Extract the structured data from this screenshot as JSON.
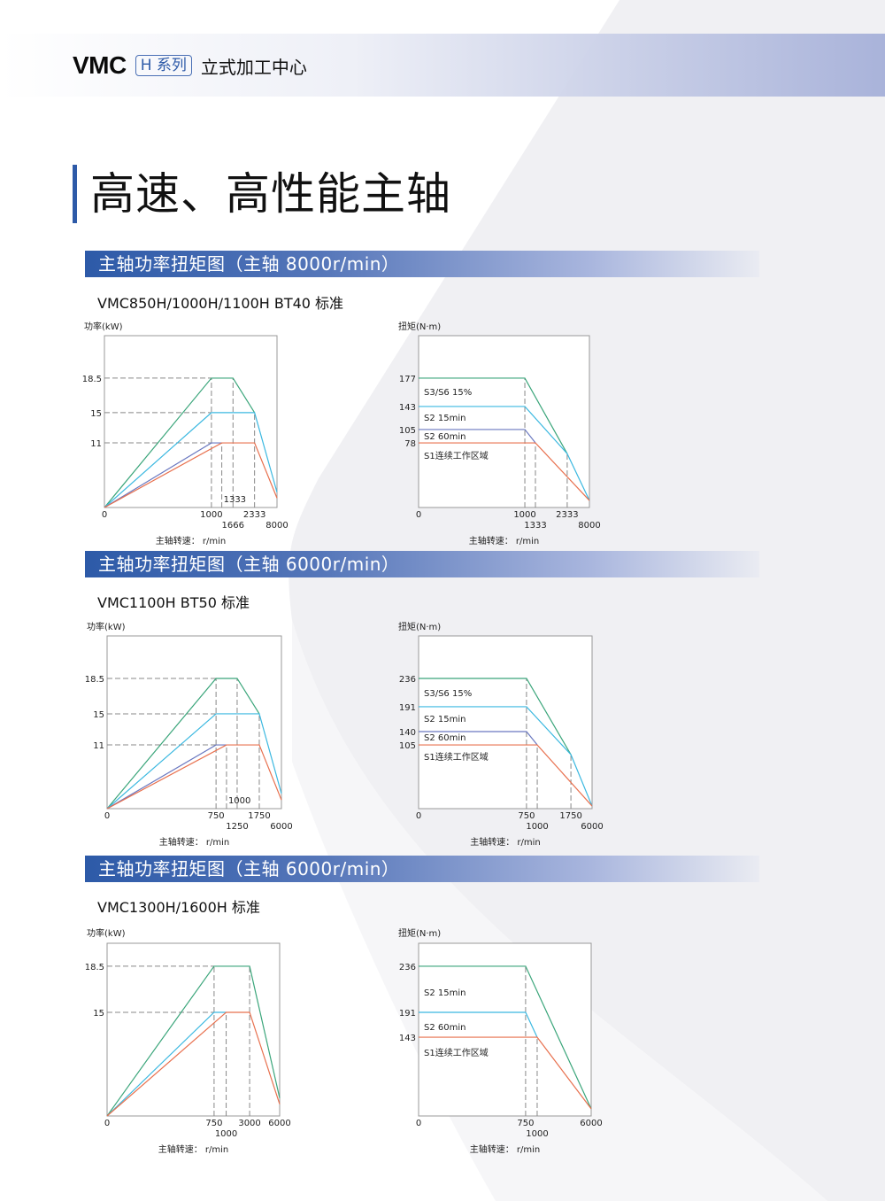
{
  "header": {
    "brand": "VMC",
    "series_badge": "H 系列",
    "subtitle": "立式加工中心"
  },
  "page_title": "高速、高性能主轴",
  "sections": [
    {
      "title": "主轴功率扭矩图（主轴 8000r/min）",
      "model": "VMC850H/1000H/1100H  BT40 标准"
    },
    {
      "title": "主轴功率扭矩图（主轴 6000r/min）",
      "model": "VMC1100H  BT50 标准"
    },
    {
      "title": "主轴功率扭矩图（主轴 6000r/min）",
      "model": "VMC1300H/1600H 标准"
    }
  ],
  "colors": {
    "accent": "#2d5aa8",
    "s3_s6": "#3aa57a",
    "s2_15min": "#3bb8e0",
    "s2_60min": "#6a78c0",
    "s1": "#e8704e",
    "guide": "#888888",
    "frame": "#999999"
  },
  "chart_data": [
    {
      "type": "line",
      "ylabel": "功率(kW)",
      "xlabel": "主轴转速：  r/min",
      "x_ticks": [
        0,
        1000,
        1333,
        1666,
        2333,
        8000
      ],
      "y_ticks": [
        11,
        15,
        18.5
      ],
      "series": [
        {
          "color": "#3aa57a",
          "points": [
            [
              0,
              0
            ],
            [
              1000,
              18.5
            ],
            [
              1666,
              18.5
            ],
            [
              2333,
              15
            ]
          ]
        },
        {
          "color": "#3bb8e0",
          "points": [
            [
              0,
              0
            ],
            [
              1000,
              15
            ],
            [
              2333,
              15
            ],
            [
              8000,
              2.6
            ]
          ]
        },
        {
          "color": "#6a78c0",
          "points": [
            [
              0,
              0
            ],
            [
              1000,
              11
            ],
            [
              1333,
              11
            ]
          ]
        },
        {
          "color": "#e8704e",
          "points": [
            [
              0,
              0
            ],
            [
              1333,
              11
            ],
            [
              2333,
              11
            ],
            [
              8000,
              1.6
            ]
          ]
        }
      ],
      "v_guides": [
        [
          1000,
          18.5
        ],
        [
          1333,
          11
        ],
        [
          1666,
          18.5
        ],
        [
          2333,
          15
        ]
      ],
      "h_guides": [
        [
          1000,
          18.5
        ],
        [
          1000,
          15
        ],
        [
          1000,
          11
        ]
      ],
      "region_labels": []
    },
    {
      "type": "line",
      "ylabel": "扭矩(N·m)",
      "xlabel": "主轴转速：  r/min",
      "x_ticks": [
        0,
        1000,
        1333,
        2333,
        8000
      ],
      "y_ticks": [
        78,
        105,
        143,
        177
      ],
      "series": [
        {
          "color": "#3aa57a",
          "points": [
            [
              0,
              177
            ],
            [
              1000,
              177
            ],
            [
              2333,
              65
            ]
          ]
        },
        {
          "color": "#3bb8e0",
          "points": [
            [
              0,
              143
            ],
            [
              1000,
              143
            ],
            [
              2333,
              65
            ],
            [
              8000,
              8.5
            ]
          ]
        },
        {
          "color": "#6a78c0",
          "points": [
            [
              0,
              105
            ],
            [
              1000,
              105
            ],
            [
              1333,
              78
            ]
          ]
        },
        {
          "color": "#e8704e",
          "points": [
            [
              0,
              78
            ],
            [
              1333,
              78
            ],
            [
              8000,
              8.5
            ]
          ]
        }
      ],
      "v_guides": [
        [
          1000,
          177
        ],
        [
          1333,
          78
        ],
        [
          2333,
          65
        ]
      ],
      "h_guides": [],
      "region_labels": [
        "S3/S6 15%",
        "S2 15min",
        "S2 60min",
        "S1连续工作区域"
      ]
    },
    {
      "type": "line",
      "ylabel": "功率(kW)",
      "xlabel": "主轴转速：  r/min",
      "x_ticks": [
        0,
        750,
        1000,
        1250,
        1750,
        6000
      ],
      "y_ticks": [
        11,
        15,
        18.5
      ],
      "series": [
        {
          "color": "#3aa57a",
          "points": [
            [
              0,
              0
            ],
            [
              750,
              18.5
            ],
            [
              1250,
              18.5
            ],
            [
              1750,
              15
            ]
          ]
        },
        {
          "color": "#3bb8e0",
          "points": [
            [
              0,
              0
            ],
            [
              750,
              15
            ],
            [
              1750,
              15
            ],
            [
              6000,
              2.6
            ]
          ]
        },
        {
          "color": "#6a78c0",
          "points": [
            [
              0,
              0
            ],
            [
              750,
              11
            ],
            [
              1000,
              11
            ]
          ]
        },
        {
          "color": "#e8704e",
          "points": [
            [
              0,
              0
            ],
            [
              1000,
              11
            ],
            [
              1750,
              11
            ],
            [
              6000,
              1.5
            ]
          ]
        }
      ],
      "v_guides": [
        [
          750,
          18.5
        ],
        [
          1000,
          11
        ],
        [
          1250,
          18.5
        ],
        [
          1750,
          15
        ]
      ],
      "h_guides": [
        [
          750,
          18.5
        ],
        [
          750,
          15
        ],
        [
          750,
          11
        ]
      ],
      "region_labels": []
    },
    {
      "type": "line",
      "ylabel": "扭矩(N·m)",
      "xlabel": "主轴转速：  r/min",
      "x_ticks": [
        0,
        750,
        1000,
        1750,
        6000
      ],
      "y_ticks": [
        105,
        140,
        191,
        236
      ],
      "series": [
        {
          "color": "#3aa57a",
          "points": [
            [
              0,
              236
            ],
            [
              750,
              236
            ],
            [
              1750,
              89
            ]
          ]
        },
        {
          "color": "#3bb8e0",
          "points": [
            [
              0,
              191
            ],
            [
              750,
              191
            ],
            [
              1750,
              89
            ],
            [
              6000,
              4.3
            ]
          ]
        },
        {
          "color": "#6a78c0",
          "points": [
            [
              0,
              140
            ],
            [
              750,
              140
            ],
            [
              1000,
              105
            ]
          ]
        },
        {
          "color": "#e8704e",
          "points": [
            [
              0,
              105
            ],
            [
              1000,
              105
            ],
            [
              6000,
              4.3
            ]
          ]
        }
      ],
      "v_guides": [
        [
          750,
          236
        ],
        [
          1000,
          105
        ],
        [
          1750,
          89
        ]
      ],
      "h_guides": [],
      "region_labels": [
        "S3/S6 15%",
        "S2 15min",
        "S2 60min",
        "S1连续工作区域"
      ]
    },
    {
      "type": "line",
      "ylabel": "功率(kW)",
      "xlabel": "主轴转速：  r/min",
      "x_ticks": [
        0,
        750,
        1000,
        3000,
        6000
      ],
      "y_ticks": [
        15,
        18.5
      ],
      "series": [
        {
          "color": "#3aa57a",
          "points": [
            [
              0,
              0
            ],
            [
              750,
              18.5
            ],
            [
              3000,
              18.5
            ],
            [
              6000,
              2.6
            ]
          ]
        },
        {
          "color": "#3bb8e0",
          "points": [
            [
              0,
              0
            ],
            [
              750,
              15
            ],
            [
              1000,
              15
            ]
          ]
        },
        {
          "color": "#e8704e",
          "points": [
            [
              0,
              0
            ],
            [
              1000,
              15
            ],
            [
              3000,
              15
            ],
            [
              6000,
              1.7
            ]
          ]
        }
      ],
      "v_guides": [
        [
          750,
          18.5
        ],
        [
          1000,
          15
        ],
        [
          3000,
          18.5
        ]
      ],
      "h_guides": [
        [
          750,
          18.5
        ],
        [
          750,
          15
        ]
      ],
      "region_labels": []
    },
    {
      "type": "line",
      "ylabel": "扭矩(N·m)",
      "xlabel": "主轴转速：  r/min",
      "x_ticks": [
        0,
        750,
        1000,
        6000
      ],
      "y_ticks": [
        143,
        191,
        236
      ],
      "series": [
        {
          "color": "#3aa57a",
          "points": [
            [
              0,
              236
            ],
            [
              750,
              236
            ],
            [
              6000,
              13
            ]
          ]
        },
        {
          "color": "#3bb8e0",
          "points": [
            [
              0,
              191
            ],
            [
              750,
              191
            ],
            [
              1000,
              143
            ]
          ]
        },
        {
          "color": "#e8704e",
          "points": [
            [
              0,
              143
            ],
            [
              1000,
              143
            ],
            [
              6000,
              13
            ]
          ]
        }
      ],
      "v_guides": [
        [
          750,
          236
        ],
        [
          1000,
          143
        ]
      ],
      "h_guides": [],
      "region_labels": [
        "S2 15min",
        "S2 60min",
        "S1连续工作区域"
      ]
    }
  ]
}
